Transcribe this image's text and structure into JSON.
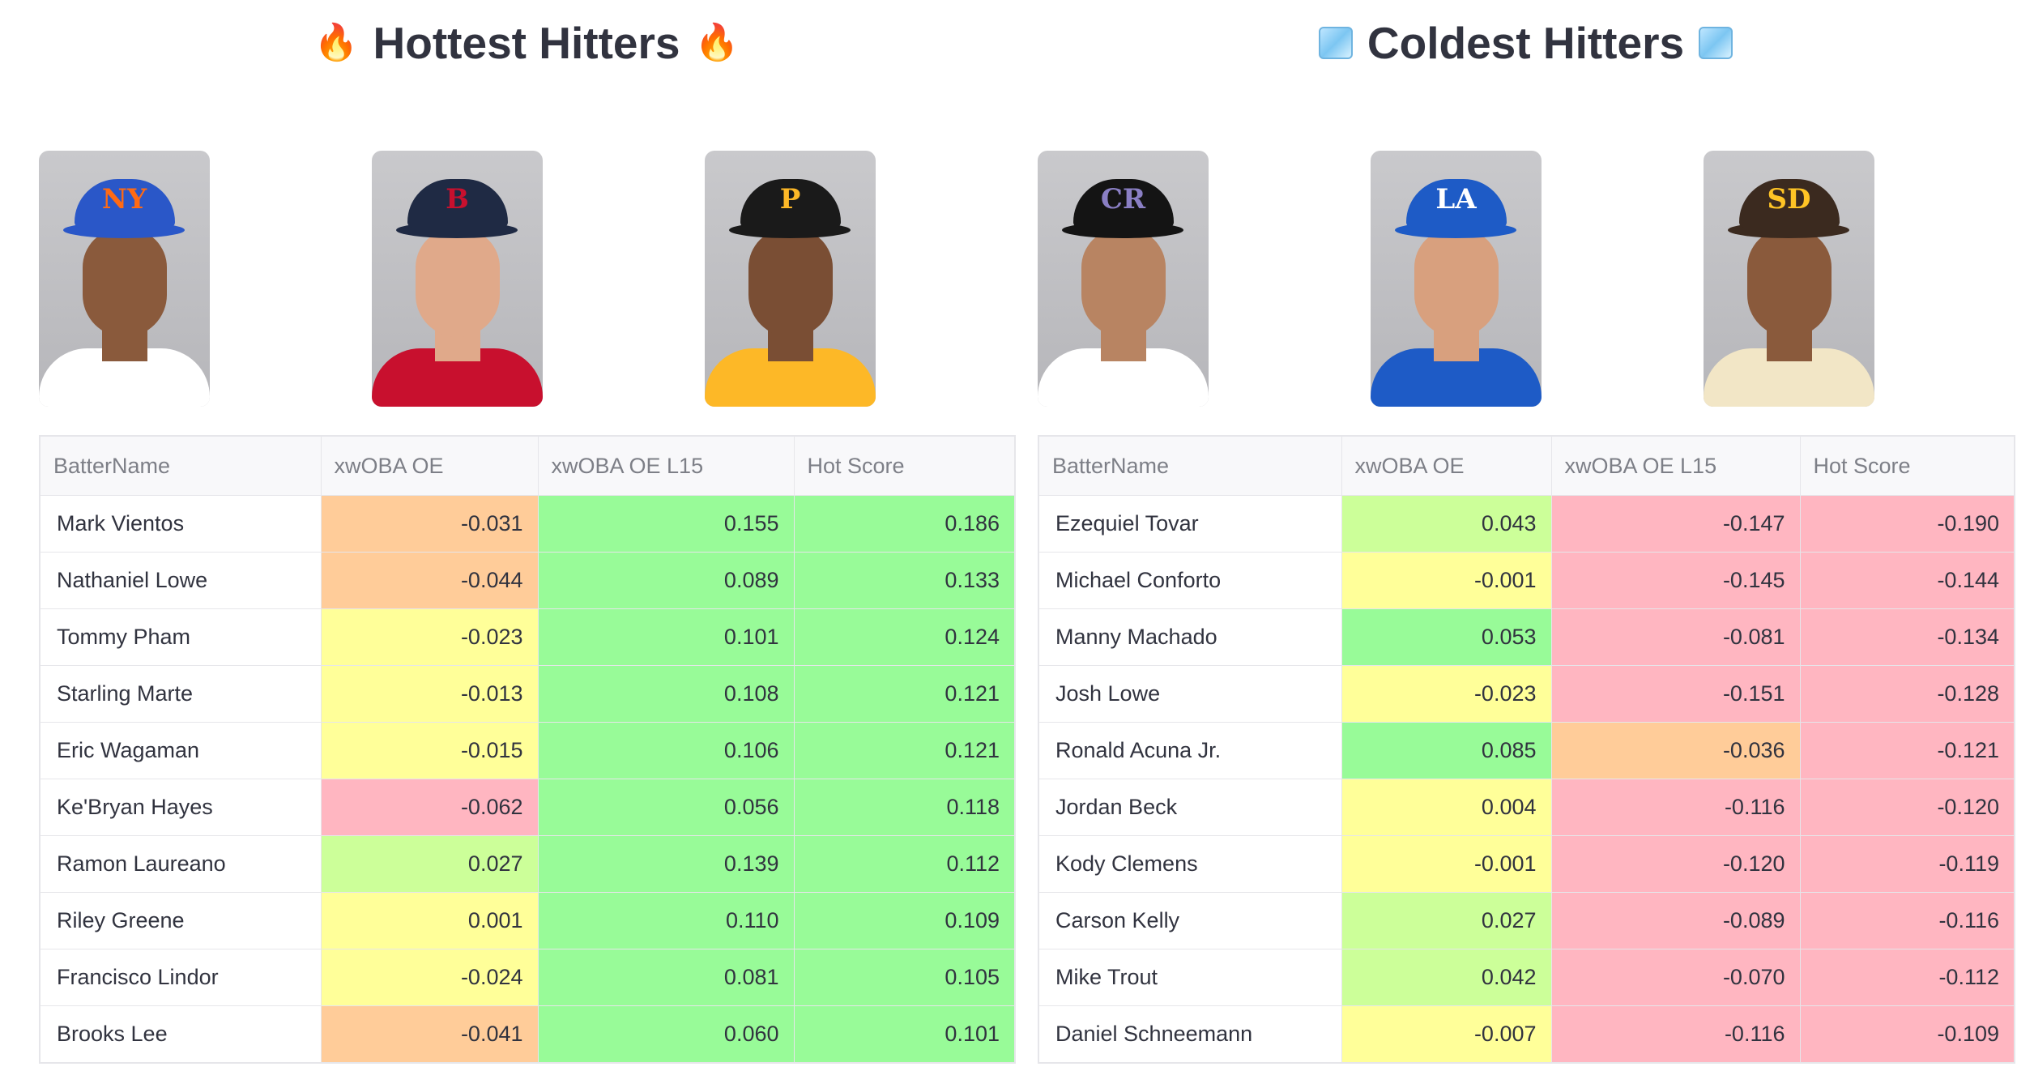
{
  "colors": {
    "green": "#98fb98",
    "lightgreen": "#ccff99",
    "yellow": "#ffff99",
    "orange": "#ffcc99",
    "red": "#ffb6c1"
  },
  "hot": {
    "title": "Hottest Hitters",
    "icon": "fire-icon",
    "columns": [
      "BatterName",
      "xwOBA OE",
      "xwOBA OE L15",
      "Hot Score"
    ],
    "rows": [
      {
        "name": "Mark Vientos",
        "oe": "-0.031",
        "l15": "0.155",
        "score": "0.186",
        "c": [
          "orange",
          "green",
          "green"
        ]
      },
      {
        "name": "Nathaniel Lowe",
        "oe": "-0.044",
        "l15": "0.089",
        "score": "0.133",
        "c": [
          "orange",
          "green",
          "green"
        ]
      },
      {
        "name": "Tommy Pham",
        "oe": "-0.023",
        "l15": "0.101",
        "score": "0.124",
        "c": [
          "yellow",
          "green",
          "green"
        ]
      },
      {
        "name": "Starling Marte",
        "oe": "-0.013",
        "l15": "0.108",
        "score": "0.121",
        "c": [
          "yellow",
          "green",
          "green"
        ]
      },
      {
        "name": "Eric Wagaman",
        "oe": "-0.015",
        "l15": "0.106",
        "score": "0.121",
        "c": [
          "yellow",
          "green",
          "green"
        ]
      },
      {
        "name": "Ke'Bryan Hayes",
        "oe": "-0.062",
        "l15": "0.056",
        "score": "0.118",
        "c": [
          "red",
          "green",
          "green"
        ]
      },
      {
        "name": "Ramon Laureano",
        "oe": "0.027",
        "l15": "0.139",
        "score": "0.112",
        "c": [
          "lightgreen",
          "green",
          "green"
        ]
      },
      {
        "name": "Riley Greene",
        "oe": "0.001",
        "l15": "0.110",
        "score": "0.109",
        "c": [
          "yellow",
          "green",
          "green"
        ]
      },
      {
        "name": "Francisco Lindor",
        "oe": "-0.024",
        "l15": "0.081",
        "score": "0.105",
        "c": [
          "yellow",
          "green",
          "green"
        ]
      },
      {
        "name": "Brooks Lee",
        "oe": "-0.041",
        "l15": "0.060",
        "score": "0.101",
        "c": [
          "orange",
          "green",
          "green"
        ]
      }
    ],
    "photos": [
      {
        "team_logo": "NY",
        "cap": "#2a57c8",
        "logo_color": "#ff6a13",
        "jersey": "#ffffff",
        "skin": "#8a5a3c"
      },
      {
        "team_logo": "B",
        "cap": "#1f2a44",
        "logo_color": "#c8102e",
        "jersey": "#c8102e",
        "skin": "#e0a98a"
      },
      {
        "team_logo": "P",
        "cap": "#1a1a1a",
        "logo_color": "#fdb827",
        "jersey": "#fdb827",
        "skin": "#7a4e34"
      }
    ]
  },
  "cold": {
    "title": "Coldest Hitters",
    "icon": "ice-cube-icon",
    "columns": [
      "BatterName",
      "xwOBA OE",
      "xwOBA OE L15",
      "Hot Score"
    ],
    "rows": [
      {
        "name": "Ezequiel Tovar",
        "oe": "0.043",
        "l15": "-0.147",
        "score": "-0.190",
        "c": [
          "lightgreen",
          "red",
          "red"
        ]
      },
      {
        "name": "Michael Conforto",
        "oe": "-0.001",
        "l15": "-0.145",
        "score": "-0.144",
        "c": [
          "yellow",
          "red",
          "red"
        ]
      },
      {
        "name": "Manny Machado",
        "oe": "0.053",
        "l15": "-0.081",
        "score": "-0.134",
        "c": [
          "green",
          "red",
          "red"
        ]
      },
      {
        "name": "Josh Lowe",
        "oe": "-0.023",
        "l15": "-0.151",
        "score": "-0.128",
        "c": [
          "yellow",
          "red",
          "red"
        ]
      },
      {
        "name": "Ronald Acuna Jr.",
        "oe": "0.085",
        "l15": "-0.036",
        "score": "-0.121",
        "c": [
          "green",
          "orange",
          "red"
        ]
      },
      {
        "name": "Jordan Beck",
        "oe": "0.004",
        "l15": "-0.116",
        "score": "-0.120",
        "c": [
          "yellow",
          "red",
          "red"
        ]
      },
      {
        "name": "Kody Clemens",
        "oe": "-0.001",
        "l15": "-0.120",
        "score": "-0.119",
        "c": [
          "yellow",
          "red",
          "red"
        ]
      },
      {
        "name": "Carson Kelly",
        "oe": "0.027",
        "l15": "-0.089",
        "score": "-0.116",
        "c": [
          "lightgreen",
          "red",
          "red"
        ]
      },
      {
        "name": "Mike Trout",
        "oe": "0.042",
        "l15": "-0.070",
        "score": "-0.112",
        "c": [
          "lightgreen",
          "red",
          "red"
        ]
      },
      {
        "name": "Daniel Schneemann",
        "oe": "-0.007",
        "l15": "-0.116",
        "score": "-0.109",
        "c": [
          "yellow",
          "red",
          "red"
        ]
      }
    ],
    "photos": [
      {
        "team_logo": "CR",
        "cap": "#141414",
        "logo_color": "#8a7fc4",
        "jersey": "#ffffff",
        "skin": "#b88462"
      },
      {
        "team_logo": "LA",
        "cap": "#1e5bc6",
        "logo_color": "#ffffff",
        "jersey": "#1e5bc6",
        "skin": "#d8a07e"
      },
      {
        "team_logo": "SD",
        "cap": "#3b2a1f",
        "logo_color": "#ffc425",
        "jersey": "#f2e6c6",
        "skin": "#8a5a3c"
      }
    ]
  }
}
